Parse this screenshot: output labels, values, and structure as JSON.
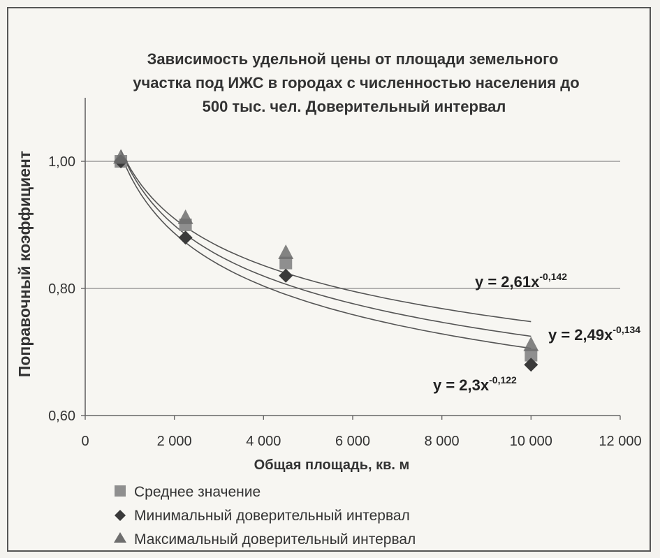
{
  "chart_data": {
    "type": "scatter",
    "title_lines": [
      "Зависимость удельной цены от площади земельного",
      "участка под ИЖС  в городах с численностью населения до",
      "500 тыс. чел. Доверительный интервал"
    ],
    "xlabel": "Общая площадь, кв. м",
    "ylabel": "Поправочный коэффициент",
    "xlim": [
      0,
      12000
    ],
    "ylim": [
      0.6,
      1.1
    ],
    "x_ticks": [
      0,
      2000,
      4000,
      6000,
      8000,
      10000,
      12000
    ],
    "x_tick_labels": [
      "0",
      "2 000",
      "4 000",
      "6 000",
      "8 000",
      "10 000",
      "12 000"
    ],
    "y_ticks": [
      0.6,
      0.8,
      1.0
    ],
    "y_tick_labels": [
      "0,60",
      "0,80",
      "1,00"
    ],
    "gridlines": "horizontal",
    "series": [
      {
        "name": "Среднее значение",
        "marker": "square",
        "color": "#8f8f8f",
        "x": [
          800,
          2250,
          4500,
          10000
        ],
        "y": [
          1.0,
          0.9,
          0.84,
          0.695
        ]
      },
      {
        "name": "Минимальный доверительный интервал",
        "marker": "diamond",
        "color": "#3a3a3a",
        "x": [
          800,
          2250,
          4500,
          10000
        ],
        "y": [
          1.0,
          0.88,
          0.82,
          0.68
        ]
      },
      {
        "name": "Максимальный доверительный  интервал",
        "marker": "triangle",
        "color": "#6e6e6e",
        "x": [
          800,
          2250,
          4500,
          10000
        ],
        "y": [
          1.005,
          0.91,
          0.855,
          0.71
        ]
      }
    ],
    "trendlines": [
      {
        "type": "power",
        "a": 2.61,
        "b": -0.142,
        "label": "y = 2,61x",
        "exponent_label": "-0,142",
        "x_range": [
          800,
          10000
        ]
      },
      {
        "type": "power",
        "a": 2.49,
        "b": -0.134,
        "label": "y = 2,49x",
        "exponent_label": "-0,134",
        "x_range": [
          800,
          10000
        ]
      },
      {
        "type": "power",
        "a": 2.3,
        "b": -0.122,
        "label": "y = 2,3x",
        "exponent_label": "-0,122",
        "x_range": [
          800,
          10000
        ]
      }
    ],
    "legend_position": "bottom-left"
  }
}
